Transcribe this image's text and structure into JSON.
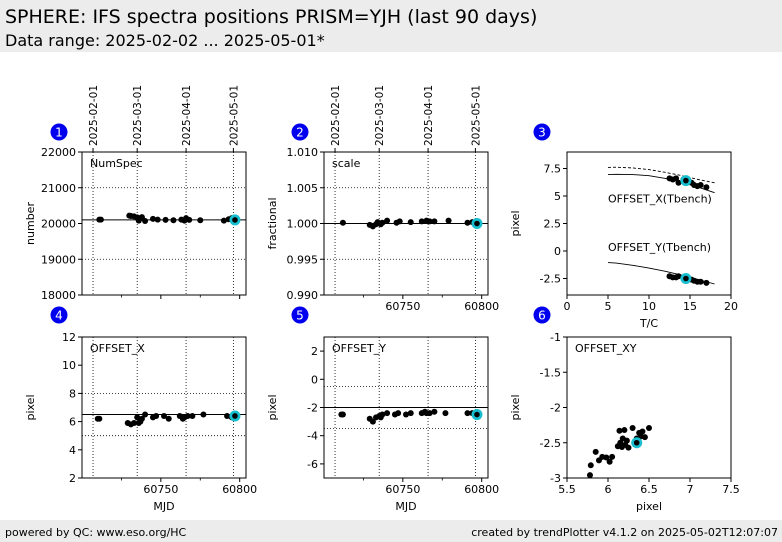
{
  "header": {
    "title": "SPHERE: IFS spectra positions PRISM=YJH (last 90 days)",
    "subtitle": "Data range: 2025-02-02 ... 2025-05-01*"
  },
  "footer": {
    "left": "powered by QC: www.eso.org/HC",
    "right": "created by trendPlotter v4.1.2 on 2025-05-02T12:07:07"
  },
  "colors": {
    "points": "#000000",
    "highlight": "#17becf",
    "badge": "#0000ee",
    "header_bg": "#ececec"
  },
  "date_ticks": [
    "2025-02-01",
    "2025-03-01",
    "2025-04-01",
    "2025-05-01"
  ],
  "chart_data": [
    {
      "panel": "1",
      "type": "scatter",
      "label": "NumSpec",
      "ylabel": "number",
      "xlabel": "",
      "xlim": [
        60700,
        60804
      ],
      "ylim": [
        18000,
        22000
      ],
      "xticks": [
        60750,
        60800
      ],
      "xtick_labels": [
        "",
        ""
      ],
      "yticks": [
        18000,
        19000,
        20000,
        21000,
        22000
      ],
      "ref_line": 20100,
      "hlines": [
        19000,
        21000
      ],
      "vlines": [
        60707,
        60735,
        60766,
        60796
      ],
      "x": [
        60711,
        60712,
        60730,
        60731,
        60733,
        60735,
        60736,
        60737,
        60738,
        60740,
        60745,
        60748,
        60753,
        60758,
        60763,
        60765,
        60766,
        60768,
        60775,
        60790,
        60793,
        60795
      ],
      "y": [
        20110,
        20110,
        20220,
        20210,
        20200,
        20170,
        20080,
        20150,
        20180,
        20070,
        20130,
        20110,
        20100,
        20090,
        20110,
        20080,
        20150,
        20100,
        20090,
        20080,
        20120,
        20150
      ],
      "highlight": {
        "x": 60797,
        "y": 20100
      }
    },
    {
      "panel": "2",
      "type": "scatter",
      "label": "scale",
      "ylabel": "fractional",
      "xlabel": "",
      "xlim": [
        60700,
        60804
      ],
      "ylim": [
        0.99,
        1.01
      ],
      "xticks": [
        60750,
        60800
      ],
      "xtick_labels": [
        "60750",
        "60800"
      ],
      "yticks": [
        0.99,
        0.995,
        1.0,
        1.005,
        1.01
      ],
      "ytick_labels": [
        "0.990",
        "0.995",
        "1.000",
        "1.005",
        "1.010"
      ],
      "ref_line": 1.0,
      "hlines": [
        0.995,
        1.005
      ],
      "vlines": [
        60707,
        60735,
        60766,
        60796
      ],
      "x": [
        60712,
        60729,
        60731,
        60733,
        60734,
        60736,
        60737,
        60740,
        60746,
        60748,
        60755,
        60762,
        60765,
        60767,
        60770,
        60779,
        60791,
        60794,
        60796
      ],
      "y": [
        1.0001,
        0.9998,
        0.9996,
        0.9999,
        1.0002,
        0.9999,
        1.0001,
        1.0004,
        1.0001,
        1.0003,
        1.0002,
        1.0003,
        1.0004,
        1.0003,
        1.0003,
        1.0004,
        1.0001,
        1.0002,
        1.0001
      ],
      "highlight": {
        "x": 60797,
        "y": 1.0
      }
    },
    {
      "panel": "3",
      "type": "scatter",
      "label": "",
      "ylabel": "pixel",
      "xlabel": "T/C",
      "xlim": [
        0,
        20
      ],
      "ylim": [
        -4,
        9
      ],
      "xticks": [
        0,
        5,
        10,
        15,
        20
      ],
      "yticks": [
        -2.5,
        0.0,
        2.5,
        5.0,
        7.5
      ],
      "annotations": [
        "OFFSET_X(Tbench)",
        "OFFSET_Y(Tbench)"
      ],
      "fit_curves": [
        {
          "name": "OFFSET_X fit",
          "style": "solid",
          "x": [
            5,
            6,
            8,
            10,
            12,
            14,
            16,
            18
          ],
          "y": [
            6.95,
            6.97,
            6.95,
            6.85,
            6.6,
            6.25,
            5.8,
            5.3
          ]
        },
        {
          "name": "OFFSET_X band",
          "style": "dashed",
          "x": [
            5,
            6,
            8,
            10,
            12,
            14,
            16,
            18
          ],
          "y": [
            7.6,
            7.62,
            7.55,
            7.4,
            7.15,
            6.85,
            6.5,
            6.2
          ]
        },
        {
          "name": "OFFSET_Y fit",
          "style": "solid",
          "x": [
            5,
            6,
            8,
            10,
            12,
            14,
            16,
            18
          ],
          "y": [
            -1.05,
            -1.1,
            -1.3,
            -1.55,
            -1.85,
            -2.2,
            -2.6,
            -3.0
          ]
        }
      ],
      "series": [
        {
          "name": "OFFSET_X",
          "x": [
            12.5,
            12.9,
            13.3,
            13.6,
            14.2,
            14.8,
            15.2,
            15.5,
            15.9,
            16.3,
            17.0
          ],
          "y": [
            6.6,
            6.5,
            6.6,
            6.2,
            6.5,
            6.4,
            6.2,
            6.0,
            5.9,
            6.0,
            5.8
          ]
        },
        {
          "name": "OFFSET_Y",
          "x": [
            12.5,
            12.9,
            13.3,
            13.6,
            14.2,
            14.8,
            15.2,
            15.5,
            15.9,
            16.3,
            17.0
          ],
          "y": [
            -2.3,
            -2.4,
            -2.4,
            -2.3,
            -2.4,
            -2.5,
            -2.6,
            -2.7,
            -2.8,
            -2.8,
            -2.9
          ]
        }
      ],
      "highlight_points": [
        {
          "x": 14.5,
          "y": 6.4
        },
        {
          "x": 14.5,
          "y": -2.5
        }
      ]
    },
    {
      "panel": "4",
      "type": "scatter",
      "label": "OFFSET_X",
      "ylabel": "pixel",
      "xlabel": "MJD",
      "xlim": [
        60700,
        60804
      ],
      "ylim": [
        2,
        12
      ],
      "xticks": [
        60750,
        60800
      ],
      "xtick_labels": [
        "60750",
        "60800"
      ],
      "yticks": [
        2,
        4,
        6,
        8,
        10,
        12
      ],
      "ref_line": 6.5,
      "hlines": [
        5.0,
        8.0
      ],
      "vlines": [
        60707,
        60735,
        60766,
        60796
      ],
      "x": [
        60710,
        60711,
        60729,
        60731,
        60733,
        60735,
        60736,
        60737,
        60738,
        60740,
        60745,
        60747,
        60752,
        60755,
        60762,
        60764,
        60765,
        60767,
        60770,
        60777,
        60792,
        60795
      ],
      "y": [
        6.2,
        6.2,
        5.9,
        5.8,
        5.9,
        6.3,
        5.9,
        6.0,
        6.2,
        6.5,
        6.3,
        6.4,
        6.4,
        6.2,
        6.4,
        6.2,
        6.3,
        6.4,
        6.4,
        6.5,
        6.4,
        6.3
      ],
      "highlight": {
        "x": 60797,
        "y": 6.4
      }
    },
    {
      "panel": "5",
      "type": "scatter",
      "label": "OFFSET_Y",
      "ylabel": "pixel",
      "xlabel": "MJD",
      "xlim": [
        60700,
        60804
      ],
      "ylim": [
        -7,
        3
      ],
      "xticks": [
        60750,
        60800
      ],
      "xtick_labels": [
        "60750",
        "60800"
      ],
      "yticks": [
        -6,
        -4,
        -2,
        0,
        2
      ],
      "ref_line": -2.0,
      "hlines": [
        -0.5,
        -3.5
      ],
      "vlines": [
        60707,
        60735,
        60766,
        60796
      ],
      "x": [
        60711,
        60712,
        60729,
        60731,
        60733,
        60735,
        60736,
        60737,
        60740,
        60745,
        60747,
        60752,
        60755,
        60762,
        60764,
        60765,
        60767,
        60770,
        60777,
        60791,
        60794
      ],
      "y": [
        -2.5,
        -2.5,
        -2.8,
        -3.0,
        -2.7,
        -2.6,
        -2.7,
        -2.5,
        -2.4,
        -2.5,
        -2.4,
        -2.5,
        -2.4,
        -2.4,
        -2.3,
        -2.4,
        -2.4,
        -2.3,
        -2.4,
        -2.4,
        -2.4
      ],
      "highlight": {
        "x": 60797,
        "y": -2.5
      }
    },
    {
      "panel": "6",
      "type": "scatter",
      "label": "OFFSET_XY",
      "ylabel": "pixel",
      "xlabel": "pixel",
      "xlim": [
        5.5,
        7.5
      ],
      "ylim": [
        -3.0,
        -1.0
      ],
      "xticks": [
        5.5,
        6.0,
        6.5,
        7.0,
        7.5
      ],
      "yticks": [
        -3.0,
        -2.5,
        -2.0,
        -1.5,
        -1.0
      ],
      "x": [
        5.78,
        5.79,
        5.85,
        5.89,
        5.93,
        5.98,
        6.02,
        6.05,
        6.12,
        6.14,
        6.15,
        6.17,
        6.18,
        6.2,
        6.21,
        6.23,
        6.25,
        6.3,
        6.35,
        6.38,
        6.4,
        6.42,
        6.45,
        6.5
      ],
      "y": [
        -2.96,
        -2.82,
        -2.63,
        -2.75,
        -2.7,
        -2.71,
        -2.77,
        -2.7,
        -2.55,
        -2.33,
        -2.5,
        -2.56,
        -2.44,
        -2.32,
        -2.53,
        -2.47,
        -2.57,
        -2.29,
        -2.44,
        -2.36,
        -2.41,
        -2.34,
        -2.42,
        -2.29
      ],
      "highlight": {
        "x": 6.35,
        "y": -2.5
      }
    }
  ]
}
